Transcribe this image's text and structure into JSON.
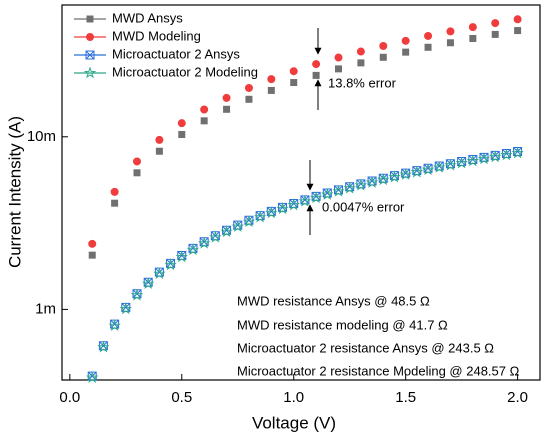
{
  "chart_data": {
    "type": "scatter",
    "xlabel": "Voltage (V)",
    "ylabel": "Current Intensity (A)",
    "xlim": [
      -0.035,
      2.1
    ],
    "xticks": [
      {
        "value": 0,
        "label": "0.0"
      },
      0.5,
      {
        "value": 1,
        "label": "1.0"
      },
      1.5,
      {
        "value": 2,
        "label": "2.0"
      }
    ],
    "ylim": [
      0.00039,
      0.058
    ],
    "ylog": true,
    "yticks": [
      {
        "value": 0.001,
        "label": "1m"
      },
      {
        "value": 0.01,
        "label": "10m"
      }
    ],
    "legend": "upper left",
    "annotations": [
      "13.8% error",
      "0.0047% error",
      "MWD resistance Ansys @ 48.5 Ω",
      "MWD resistance modeling @ 41.7 Ω",
      "Microactuator 2 resistance Ansys @ 243.5 Ω",
      "Microactuator 2 resistance Modeling @ 248.57 Ω"
    ],
    "series": [
      {
        "name": "MWD Ansys",
        "color": "#707070",
        "marker": "square",
        "x": [
          0.1,
          0.2,
          0.3,
          0.4,
          0.5,
          0.6,
          0.7,
          0.8,
          0.9,
          1.0,
          1.1,
          1.2,
          1.3,
          1.4,
          1.5,
          1.6,
          1.7,
          1.8,
          1.9,
          2.0
        ],
        "values": [
          0.002062,
          0.004124,
          0.006186,
          0.008247,
          0.01031,
          0.01237,
          0.01443,
          0.01649,
          0.01856,
          0.02062,
          0.02268,
          0.02474,
          0.0268,
          0.02887,
          0.03093,
          0.03299,
          0.03505,
          0.03711,
          0.03918,
          0.04124
        ]
      },
      {
        "name": "MWD Modeling",
        "color": "#f03c3c",
        "marker": "circle",
        "x": [
          0.1,
          0.2,
          0.3,
          0.4,
          0.5,
          0.6,
          0.7,
          0.8,
          0.9,
          1.0,
          1.1,
          1.2,
          1.3,
          1.4,
          1.5,
          1.6,
          1.7,
          1.8,
          1.9,
          2.0
        ],
        "values": [
          0.002398,
          0.004796,
          0.007194,
          0.009592,
          0.01199,
          0.01439,
          0.01679,
          0.01918,
          0.02158,
          0.02398,
          0.02638,
          0.02878,
          0.03118,
          0.03357,
          0.03597,
          0.03837,
          0.04077,
          0.04317,
          0.04556,
          0.04796
        ]
      },
      {
        "name": "Microactuator 2 Ansys",
        "color": "#2a6fdb",
        "marker": "xcircle",
        "x": [
          0.1,
          0.15,
          0.2,
          0.25,
          0.3,
          0.35,
          0.4,
          0.45,
          0.5,
          0.55,
          0.6,
          0.65,
          0.7,
          0.75,
          0.8,
          0.85,
          0.9,
          0.95,
          1.0,
          1.05,
          1.1,
          1.15,
          1.2,
          1.25,
          1.3,
          1.35,
          1.4,
          1.45,
          1.5,
          1.55,
          1.6,
          1.65,
          1.7,
          1.75,
          1.8,
          1.85,
          1.9,
          1.95,
          2.0
        ],
        "values": [
          0.0004107,
          0.000616,
          0.0008214,
          0.001027,
          0.001232,
          0.001437,
          0.001643,
          0.001848,
          0.002053,
          0.002259,
          0.002464,
          0.002669,
          0.002875,
          0.00308,
          0.003285,
          0.003491,
          0.003696,
          0.003901,
          0.004107,
          0.004312,
          0.004517,
          0.004723,
          0.004928,
          0.005133,
          0.005339,
          0.005544,
          0.005749,
          0.005955,
          0.00616,
          0.006366,
          0.006571,
          0.006776,
          0.006982,
          0.007187,
          0.007392,
          0.007598,
          0.007803,
          0.008008,
          0.008214
        ]
      },
      {
        "name": "Microactuator 2 Modeling",
        "color": "#2aa889",
        "marker": "star",
        "x": [
          0.1,
          0.15,
          0.2,
          0.25,
          0.3,
          0.35,
          0.4,
          0.45,
          0.5,
          0.55,
          0.6,
          0.65,
          0.7,
          0.75,
          0.8,
          0.85,
          0.9,
          0.95,
          1.0,
          1.05,
          1.1,
          1.15,
          1.2,
          1.25,
          1.3,
          1.35,
          1.4,
          1.45,
          1.5,
          1.55,
          1.6,
          1.65,
          1.7,
          1.75,
          1.8,
          1.85,
          1.9,
          1.95,
          2.0
        ],
        "values": [
          0.0004023,
          0.0006035,
          0.0008046,
          0.001006,
          0.001207,
          0.001408,
          0.001609,
          0.00181,
          0.002012,
          0.002213,
          0.002414,
          0.002615,
          0.002816,
          0.003017,
          0.003218,
          0.00342,
          0.003621,
          0.003822,
          0.004023,
          0.004224,
          0.004425,
          0.004626,
          0.004828,
          0.005029,
          0.00523,
          0.005431,
          0.005632,
          0.005833,
          0.006035,
          0.006236,
          0.006437,
          0.006638,
          0.006839,
          0.00704,
          0.007241,
          0.007443,
          0.007644,
          0.007845,
          0.008046
        ]
      }
    ]
  }
}
